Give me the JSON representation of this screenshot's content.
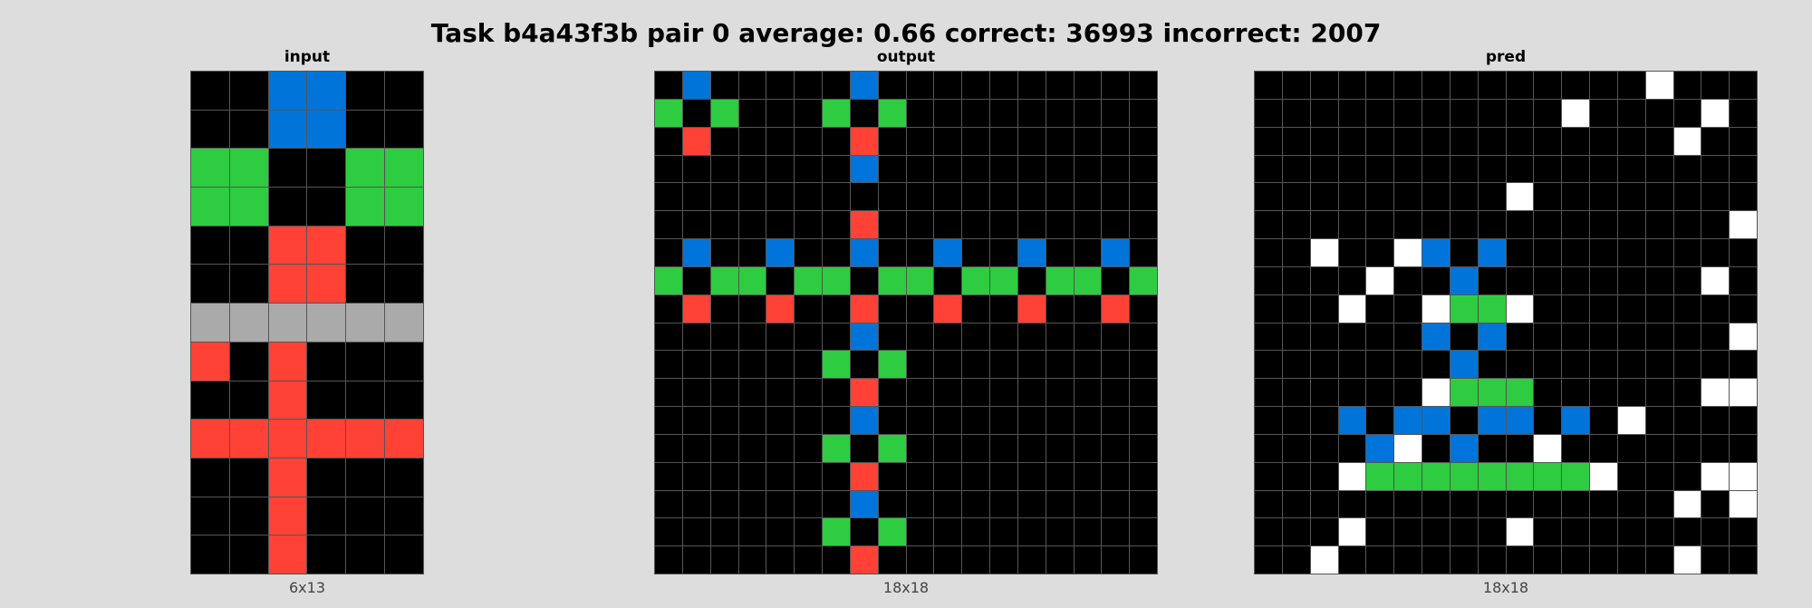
{
  "title": "Task b4a43f3b pair 0 average: 0.66 correct: 36993 incorrect: 2007",
  "palette": {
    "0": "#000000",
    "1": "#0074D9",
    "2": "#FF4136",
    "3": "#2ECC40",
    "5": "#AAAAAA",
    "9": "#FFFFFF"
  },
  "panels": [
    {
      "title": "input",
      "caption": "6x13",
      "rows": [
        "001100",
        "001100",
        "330033",
        "330033",
        "002200",
        "002200",
        "555555",
        "202000",
        "002000",
        "222222",
        "002000",
        "002000",
        "002000"
      ]
    },
    {
      "title": "output",
      "caption": "18x18",
      "rows": [
        "010000010000000000",
        "303000303000000000",
        "020000020000000000",
        "000000010000000000",
        "000000000000000000",
        "000000020000000000",
        "010010010010010010",
        "303303303303303303",
        "020020020020020020",
        "000000010000000000",
        "000000303000000000",
        "000000020000000000",
        "000000010000000000",
        "000000303000000000",
        "000000020000000000",
        "000000010000000000",
        "000000303000000000",
        "000000020000000000"
      ]
    },
    {
      "title": "pred",
      "caption": "18x18",
      "rows": [
        "000000000000009000",
        "000000000009000090",
        "000000000000000900",
        "000000000000000000",
        "000000000900000000",
        "000000000000000009",
        "009009101000000000",
        "000090010000000090",
        "000900933900000000",
        "000000101000000009",
        "000000010000000000",
        "000000933300000099",
        "000101101101090000",
        "000019010090000000",
        "000933333333900099",
        "000000000000000909",
        "000900000900000000",
        "009000000000000900"
      ]
    }
  ]
}
